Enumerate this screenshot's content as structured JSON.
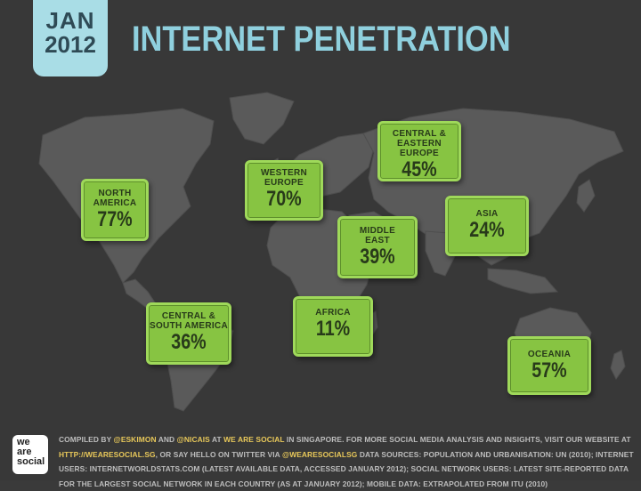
{
  "header": {
    "month": "JAN",
    "year": "2012",
    "title": "INTERNET PENETRATION"
  },
  "regions": [
    {
      "id": "north-america",
      "label": "NORTH\nAMERICA",
      "value": "77%"
    },
    {
      "id": "western-europe",
      "label": "WESTERN\nEUROPE",
      "value": "70%"
    },
    {
      "id": "central-eastern-europe",
      "label": "CENTRAL &\nEASTERN EUROPE",
      "value": "45%"
    },
    {
      "id": "asia",
      "label": "ASIA",
      "value": "24%"
    },
    {
      "id": "middle-east",
      "label": "MIDDLE\nEAST",
      "value": "39%"
    },
    {
      "id": "africa",
      "label": "AFRICA",
      "value": "11%"
    },
    {
      "id": "central-south-america",
      "label": "CENTRAL &\nSOUTH AMERICA",
      "value": "36%"
    },
    {
      "id": "oceania",
      "label": "OCEANIA",
      "value": "57%"
    }
  ],
  "footer": {
    "logo_lines": [
      "we",
      "are",
      "social"
    ],
    "t1": "COMPILED BY ",
    "h1": "@ESKIMON",
    "t2": " AND ",
    "h2": "@NICAIS",
    "t3": " AT ",
    "h3": "WE ARE SOCIAL",
    "t4": " IN SINGAPORE. FOR MORE SOCIAL MEDIA ANALYSIS AND INSIGHTS, VISIT OUR WEBSITE AT ",
    "h4": "HTTP://WEARESOCIAL.SG",
    "t5": ", OR SAY HELLO ON TWITTER VIA ",
    "h5": "@WEARESOCIALSG",
    "t6": " DATA SOURCES: POPULATION AND URBANISATION: UN (2010); INTERNET USERS: INTERNETWORLDSTATS.COM (LATEST AVAILABLE DATA, ACCESSED JANUARY 2012); SOCIAL NETWORK USERS: LATEST SITE-REPORTED DATA FOR THE LARGEST SOCIAL NETWORK IN EACH COUNTRY (AS AT JANUARY 2012); MOBILE DATA: EXTRAPOLATED FROM ITU (2010)"
  },
  "colors": {
    "background": "#383838",
    "map_land": "#5a5a5a",
    "box_fill": "#87c442",
    "title": "#8fd0de",
    "date_tab": "#a9dde6",
    "footer_highlight": "#e8c85a"
  }
}
